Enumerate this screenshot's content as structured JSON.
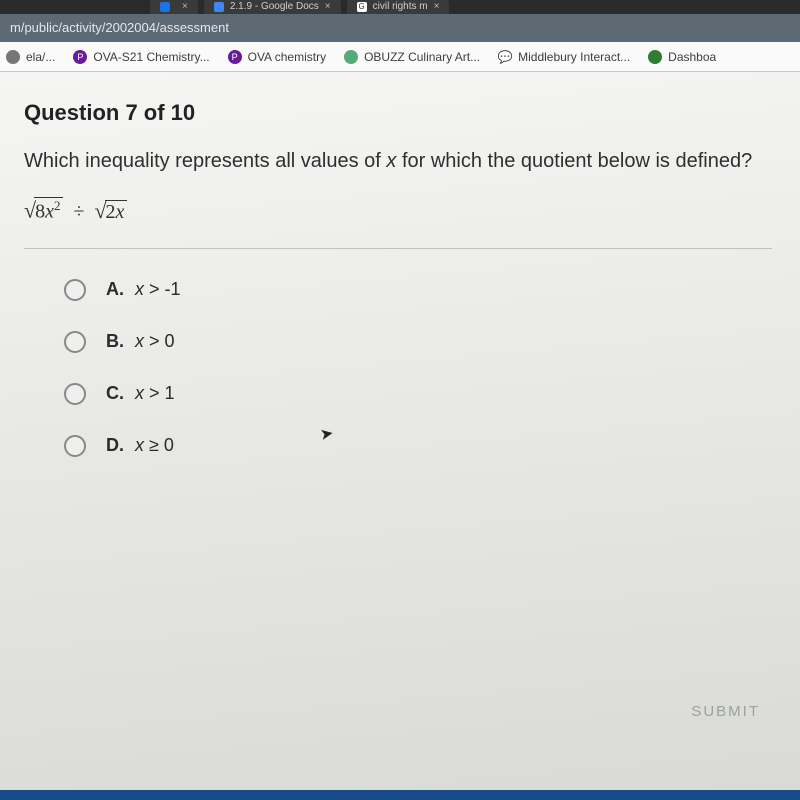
{
  "tabs": [
    {
      "label": "",
      "favicon_color": "#1a73e8"
    },
    {
      "label": "2.1.9 - Google Docs",
      "favicon_color": "#4285f4"
    },
    {
      "label": "civil rights m",
      "favicon_color": "#ffffff",
      "text": "G"
    }
  ],
  "url": "m/public/activity/2002004/assessment",
  "bookmarks": [
    {
      "label": "ela/...",
      "favicon_color": "#777",
      "text": ""
    },
    {
      "label": "OVA-S21 Chemistry...",
      "favicon_color": "#6a1b9a",
      "text": "P"
    },
    {
      "label": "OVA chemistry",
      "favicon_color": "#6a1b9a",
      "text": "P"
    },
    {
      "label": "OBUZZ Culinary Art...",
      "favicon_color": "#5a7",
      "text": ""
    },
    {
      "label": "Middlebury Interact...",
      "favicon_color": "#fff",
      "text": "",
      "icon": "chat"
    },
    {
      "label": "Dashboa",
      "favicon_color": "#2e7d32",
      "text": ""
    }
  ],
  "question": {
    "title": "Question 7 of 10",
    "text_parts": [
      "Which inequality represents all values of ",
      "x",
      " for which the quotient below is defined?"
    ],
    "expr": {
      "r1_html": "8<em>x</em><sup>2</sup>",
      "op": "÷",
      "r2_html": "2<em>x</em>"
    },
    "options": [
      {
        "letter": "A.",
        "math": "x > -1"
      },
      {
        "letter": "B.",
        "math": "x > 0"
      },
      {
        "letter": "C.",
        "math": "x > 1"
      },
      {
        "letter": "D.",
        "math": "x ≥ 0"
      }
    ],
    "submit": "SUBMIT"
  },
  "colors": {
    "taskbar": "#184a8a"
  }
}
